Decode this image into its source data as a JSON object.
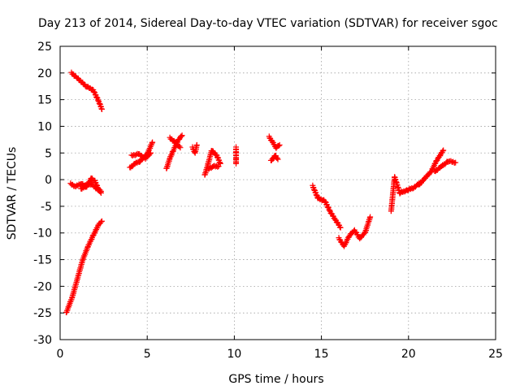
{
  "chart_data": {
    "type": "scatter",
    "title": "Day 213 of 2014, Sidereal Day-to-day VTEC variation (SDTVAR) for receiver sgoc",
    "xlabel": "GPS time / hours",
    "ylabel": "SDTVAR / TECUs",
    "xlim": [
      0,
      25
    ],
    "ylim": [
      -30,
      25
    ],
    "xticks": [
      0,
      5,
      10,
      15,
      20,
      25
    ],
    "yticks": [
      -30,
      -25,
      -20,
      -15,
      -10,
      -5,
      0,
      5,
      10,
      15,
      20,
      25
    ],
    "grid": true,
    "marker": "+",
    "color": "#ff0000",
    "series": [
      {
        "name": "SDTVAR",
        "segments": [
          {
            "x": [
              0.65,
              1.0,
              1.5,
              1.9,
              2.2,
              2.4
            ],
            "y": [
              20.0,
              19.0,
              17.5,
              16.8,
              14.8,
              13.2
            ]
          },
          {
            "x": [
              0.6,
              0.9,
              1.2,
              1.5,
              1.8,
              2.0,
              2.2,
              2.35
            ],
            "y": [
              -0.8,
              -1.3,
              -0.7,
              -1.4,
              0.3,
              -0.3,
              -1.8,
              -2.5
            ]
          },
          {
            "x": [
              1.2,
              1.5,
              1.8,
              2.1,
              2.35
            ],
            "y": [
              -1.8,
              -1.0,
              -0.8,
              -1.7,
              -2.2
            ]
          },
          {
            "x": [
              0.35,
              0.7,
              1.0,
              1.3,
              1.6,
              1.9,
              2.2,
              2.4
            ],
            "y": [
              -25.0,
              -22.0,
              -18.5,
              -15.0,
              -12.5,
              -10.5,
              -8.5,
              -7.8
            ]
          },
          {
            "x": [
              4.0,
              4.3,
              4.6,
              5.0,
              5.3
            ],
            "y": [
              2.2,
              3.0,
              3.5,
              4.8,
              7.0
            ]
          },
          {
            "x": [
              4.1,
              4.5,
              4.9,
              5.2
            ],
            "y": [
              4.5,
              4.8,
              4.0,
              5.0
            ]
          },
          {
            "x": [
              6.1,
              6.3,
              6.5,
              6.8,
              7.0
            ],
            "y": [
              2.0,
              4.0,
              5.5,
              7.5,
              8.3
            ]
          },
          {
            "x": [
              6.3,
              6.6,
              6.9
            ],
            "y": [
              7.8,
              7.0,
              6.0
            ]
          },
          {
            "x": [
              7.6,
              7.75,
              7.85
            ],
            "y": [
              6.0,
              5.0,
              6.5
            ]
          },
          {
            "x": [
              8.3,
              8.5,
              8.7,
              9.0,
              9.2
            ],
            "y": [
              0.8,
              3.0,
              5.5,
              4.5,
              3.0
            ]
          },
          {
            "x": [
              8.5,
              8.8,
              9.1
            ],
            "y": [
              2.0,
              2.5,
              2.5
            ]
          },
          {
            "x": [
              10.1,
              10.1,
              10.1
            ],
            "y": [
              6.0,
              3.8,
              3.0
            ]
          },
          {
            "x": [
              12.0,
              12.2,
              12.4,
              12.6
            ],
            "y": [
              8.0,
              7.0,
              6.0,
              6.5
            ]
          },
          {
            "x": [
              12.1,
              12.35,
              12.5
            ],
            "y": [
              3.5,
              4.5,
              3.8
            ]
          },
          {
            "x": [
              14.5,
              14.8,
              15.2,
              15.5,
              15.8,
              16.1
            ],
            "y": [
              -1.2,
              -3.5,
              -4.0,
              -6.0,
              -7.5,
              -9.0
            ]
          },
          {
            "x": [
              16.0,
              16.3,
              16.6,
              16.9,
              17.2,
              17.5,
              17.8
            ],
            "y": [
              -11.0,
              -12.5,
              -10.5,
              -9.5,
              -11.0,
              -10.0,
              -7.0
            ]
          },
          {
            "x": [
              19.0,
              19.2,
              19.5,
              19.9,
              20.3,
              20.7
            ],
            "y": [
              -6.0,
              0.5,
              -2.5,
              -2.0,
              -1.5,
              -0.5
            ]
          },
          {
            "x": [
              20.6,
              21.0,
              21.3,
              21.6,
              22.0
            ],
            "y": [
              -1.0,
              0.5,
              1.5,
              3.5,
              5.5
            ]
          },
          {
            "x": [
              21.5,
              21.9,
              22.3,
              22.7
            ],
            "y": [
              1.5,
              2.5,
              3.5,
              3.2
            ]
          }
        ]
      }
    ]
  }
}
